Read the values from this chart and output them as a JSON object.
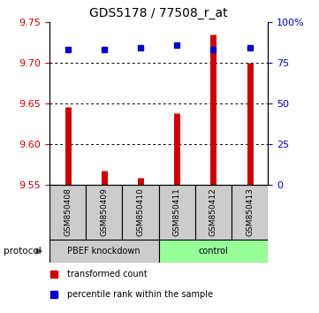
{
  "title": "GDS5178 / 77508_r_at",
  "samples": [
    "GSM850408",
    "GSM850409",
    "GSM850410",
    "GSM850411",
    "GSM850412",
    "GSM850413"
  ],
  "red_values": [
    9.645,
    9.567,
    9.558,
    9.638,
    9.735,
    9.7
  ],
  "blue_values": [
    83,
    83,
    84,
    86,
    83,
    84
  ],
  "ylim_left": [
    9.55,
    9.75
  ],
  "ylim_right": [
    0,
    100
  ],
  "yticks_left": [
    9.55,
    9.6,
    9.65,
    9.7,
    9.75
  ],
  "yticks_right": [
    0,
    25,
    50,
    75,
    100
  ],
  "ytick_labels_right": [
    "0",
    "25",
    "50",
    "75",
    "100%"
  ],
  "grid_lines": [
    9.6,
    9.65,
    9.7
  ],
  "bar_bottom": 9.55,
  "group1_label": "PBEF knockdown",
  "group2_label": "control",
  "group1_color": "#cccccc",
  "group2_color": "#99ff99",
  "sample_bg_color": "#cccccc",
  "protocol_label": "protocol",
  "legend_red_label": "transformed count",
  "legend_blue_label": "percentile rank within the sample",
  "red_color": "#cc0000",
  "blue_color": "#0000cc",
  "left_tick_color": "#cc0000",
  "right_tick_color": "#0000cc"
}
